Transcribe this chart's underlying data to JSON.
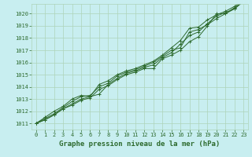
{
  "title": "Graphe pression niveau de la mer (hPa)",
  "bg_color": "#c8eef0",
  "grid_color": "#aed4b8",
  "line_color": "#2d6a2d",
  "xlim": [
    -0.5,
    23.5
  ],
  "ylim": [
    1010.5,
    1020.8
  ],
  "yticks": [
    1011,
    1012,
    1013,
    1014,
    1015,
    1016,
    1017,
    1018,
    1019,
    1020
  ],
  "xticks": [
    0,
    1,
    2,
    3,
    4,
    5,
    6,
    7,
    8,
    9,
    10,
    11,
    12,
    13,
    14,
    15,
    16,
    17,
    18,
    19,
    20,
    21,
    22,
    23
  ],
  "series": [
    [
      1011.0,
      1011.3,
      1011.7,
      1012.2,
      1012.5,
      1012.9,
      1013.1,
      1013.8,
      1014.1,
      1014.6,
      1015.0,
      1015.2,
      1015.5,
      1015.5,
      1016.3,
      1016.6,
      1017.0,
      1017.7,
      1018.1,
      1019.0,
      1020.0,
      1020.0,
      1020.4,
      1021.1
    ],
    [
      1011.0,
      1011.3,
      1011.7,
      1012.2,
      1012.6,
      1013.0,
      1013.2,
      1013.4,
      1014.2,
      1014.7,
      1015.1,
      1015.3,
      1015.6,
      1015.8,
      1016.4,
      1016.8,
      1017.5,
      1018.2,
      1018.5,
      1019.2,
      1019.8,
      1020.1,
      1020.4,
      1021.0
    ],
    [
      1011.0,
      1011.4,
      1011.8,
      1012.3,
      1012.8,
      1013.2,
      1013.3,
      1014.0,
      1014.3,
      1014.9,
      1015.2,
      1015.4,
      1015.7,
      1016.0,
      1016.5,
      1017.0,
      1017.2,
      1018.5,
      1018.7,
      1019.1,
      1019.6,
      1020.0,
      1020.5,
      1021.0
    ],
    [
      1011.0,
      1011.5,
      1012.0,
      1012.4,
      1013.0,
      1013.3,
      1013.2,
      1014.2,
      1014.5,
      1015.0,
      1015.3,
      1015.5,
      1015.8,
      1016.1,
      1016.6,
      1017.2,
      1017.8,
      1018.8,
      1018.9,
      1019.5,
      1019.9,
      1020.2,
      1020.6,
      1021.1
    ]
  ]
}
